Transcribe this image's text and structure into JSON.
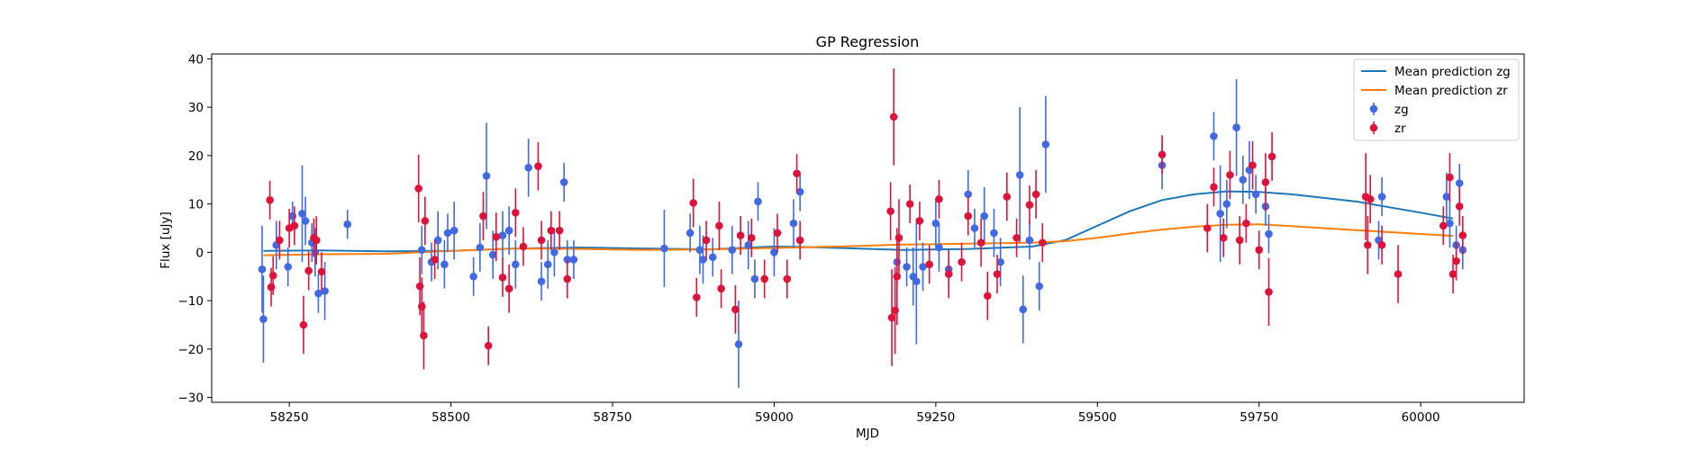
{
  "chart_data": {
    "type": "scatter",
    "title": "GP Regression",
    "xlabel": "MJD",
    "ylabel": "Flux [uJy]",
    "xlim": [
      58130,
      60160
    ],
    "ylim": [
      -31,
      41
    ],
    "xticks": [
      58250,
      58500,
      58750,
      59000,
      59250,
      59500,
      59750,
      60000
    ],
    "yticks": [
      -30,
      -20,
      -10,
      0,
      10,
      20,
      30,
      40
    ],
    "grid": false,
    "legend_position": "top-right",
    "lines": [
      {
        "name": "Mean prediction zg",
        "color": "#1f77b4",
        "x": [
          58210,
          58300,
          58400,
          58500,
          58600,
          58700,
          58800,
          58900,
          59000,
          59050,
          59100,
          59200,
          59300,
          59400,
          59450,
          59500,
          59550,
          59600,
          59650,
          59700,
          59750,
          59800,
          59900,
          60000,
          60050
        ],
        "y": [
          0.3,
          0.4,
          0.2,
          0.3,
          0.8,
          1.0,
          0.8,
          0.6,
          1.2,
          1.1,
          0.9,
          0.5,
          0.7,
          1.2,
          2.5,
          5.5,
          8.5,
          10.8,
          12.0,
          12.6,
          12.5,
          12.0,
          10.5,
          8.2,
          7.0
        ]
      },
      {
        "name": "Mean prediction zr",
        "color": "#ff7f0e",
        "x": [
          58210,
          58300,
          58400,
          58500,
          58600,
          58700,
          58800,
          58900,
          59000,
          59100,
          59200,
          59300,
          59400,
          59450,
          59500,
          59550,
          59600,
          59650,
          59700,
          59750,
          59800,
          59900,
          60000,
          60050
        ],
        "y": [
          -0.6,
          -0.4,
          -0.3,
          0.3,
          0.8,
          0.7,
          0.5,
          0.6,
          0.9,
          1.2,
          1.6,
          1.8,
          2.0,
          2.3,
          3.0,
          3.9,
          4.7,
          5.3,
          5.7,
          5.8,
          5.4,
          4.6,
          3.8,
          3.4
        ]
      }
    ],
    "series": [
      {
        "name": "zg",
        "color": "#4169e1",
        "points": [
          {
            "x": 58208,
            "y": -3.5,
            "e": 9
          },
          {
            "x": 58210,
            "y": -13.8,
            "e": 9
          },
          {
            "x": 58230,
            "y": 1.5,
            "e": 5
          },
          {
            "x": 58248,
            "y": -3,
            "e": 4
          },
          {
            "x": 58255,
            "y": 7.5,
            "e": 3
          },
          {
            "x": 58270,
            "y": 8,
            "e": 10
          },
          {
            "x": 58275,
            "y": 6.5,
            "e": 5
          },
          {
            "x": 58285,
            "y": 2,
            "e": 4
          },
          {
            "x": 58290,
            "y": 0,
            "e": 5
          },
          {
            "x": 58295,
            "y": -8.5,
            "e": 4
          },
          {
            "x": 58305,
            "y": -8,
            "e": 6
          },
          {
            "x": 58340,
            "y": 5.8,
            "e": 3
          },
          {
            "x": 58455,
            "y": 0.5,
            "e": 5
          },
          {
            "x": 58470,
            "y": -2,
            "e": 4
          },
          {
            "x": 58480,
            "y": 2.5,
            "e": 6
          },
          {
            "x": 58490,
            "y": -2.5,
            "e": 5
          },
          {
            "x": 58495,
            "y": 4,
            "e": 4
          },
          {
            "x": 58505,
            "y": 4.5,
            "e": 6
          },
          {
            "x": 58535,
            "y": -5,
            "e": 4
          },
          {
            "x": 58545,
            "y": 1,
            "e": 5
          },
          {
            "x": 58555,
            "y": 15.8,
            "e": 11
          },
          {
            "x": 58565,
            "y": -0.5,
            "e": 5
          },
          {
            "x": 58580,
            "y": 3.5,
            "e": 5
          },
          {
            "x": 58590,
            "y": 4.5,
            "e": 5
          },
          {
            "x": 58600,
            "y": -2.5,
            "e": 5
          },
          {
            "x": 58620,
            "y": 17.5,
            "e": 6
          },
          {
            "x": 58640,
            "y": -6,
            "e": 4
          },
          {
            "x": 58650,
            "y": -2.5,
            "e": 5
          },
          {
            "x": 58660,
            "y": 0,
            "e": 5
          },
          {
            "x": 58675,
            "y": 14.5,
            "e": 4
          },
          {
            "x": 58680,
            "y": -1.5,
            "e": 4
          },
          {
            "x": 58690,
            "y": -1.5,
            "e": 4
          },
          {
            "x": 58830,
            "y": 0.8,
            "e": 8
          },
          {
            "x": 58870,
            "y": 4,
            "e": 4
          },
          {
            "x": 58885,
            "y": 0.5,
            "e": 5
          },
          {
            "x": 58890,
            "y": -1.5,
            "e": 5
          },
          {
            "x": 58905,
            "y": -1,
            "e": 4
          },
          {
            "x": 58935,
            "y": 0.5,
            "e": 5
          },
          {
            "x": 58945,
            "y": -19,
            "e": 9
          },
          {
            "x": 58960,
            "y": 1.5,
            "e": 5
          },
          {
            "x": 58970,
            "y": -5.5,
            "e": 4
          },
          {
            "x": 58975,
            "y": 10.5,
            "e": 4
          },
          {
            "x": 59000,
            "y": 0,
            "e": 5
          },
          {
            "x": 59030,
            "y": 6,
            "e": 5
          },
          {
            "x": 59040,
            "y": 12.5,
            "e": 4
          },
          {
            "x": 59190,
            "y": -2,
            "e": 5
          },
          {
            "x": 59205,
            "y": -3,
            "e": 4
          },
          {
            "x": 59215,
            "y": -5,
            "e": 6
          },
          {
            "x": 59220,
            "y": -6,
            "e": 13
          },
          {
            "x": 59230,
            "y": -3,
            "e": 5
          },
          {
            "x": 59250,
            "y": 6,
            "e": 5
          },
          {
            "x": 59255,
            "y": 1,
            "e": 5
          },
          {
            "x": 59270,
            "y": -3.5,
            "e": 4
          },
          {
            "x": 59300,
            "y": 12,
            "e": 5
          },
          {
            "x": 59310,
            "y": 5,
            "e": 4
          },
          {
            "x": 59325,
            "y": 7.5,
            "e": 6
          },
          {
            "x": 59340,
            "y": 4,
            "e": 5
          },
          {
            "x": 59350,
            "y": -2,
            "e": 5
          },
          {
            "x": 59380,
            "y": 16,
            "e": 14
          },
          {
            "x": 59385,
            "y": -11.8,
            "e": 7
          },
          {
            "x": 59395,
            "y": 2.5,
            "e": 4
          },
          {
            "x": 59410,
            "y": -7,
            "e": 5
          },
          {
            "x": 59420,
            "y": 22.3,
            "e": 10
          },
          {
            "x": 59600,
            "y": 18,
            "e": 5
          },
          {
            "x": 59680,
            "y": 24,
            "e": 5
          },
          {
            "x": 59690,
            "y": 8,
            "e": 10
          },
          {
            "x": 59700,
            "y": 10,
            "e": 5
          },
          {
            "x": 59715,
            "y": 25.8,
            "e": 10
          },
          {
            "x": 59725,
            "y": 15,
            "e": 5
          },
          {
            "x": 59735,
            "y": 17,
            "e": 6
          },
          {
            "x": 59745,
            "y": 12,
            "e": 4
          },
          {
            "x": 59760,
            "y": 9.5,
            "e": 4
          },
          {
            "x": 59765,
            "y": 3.8,
            "e": 4
          },
          {
            "x": 59935,
            "y": 2.5,
            "e": 4
          },
          {
            "x": 59940,
            "y": 11.5,
            "e": 4
          },
          {
            "x": 60040,
            "y": 11.5,
            "e": 5
          },
          {
            "x": 60045,
            "y": 6,
            "e": 5
          },
          {
            "x": 60055,
            "y": 1.5,
            "e": 4
          },
          {
            "x": 60060,
            "y": 14.3,
            "e": 4
          },
          {
            "x": 60065,
            "y": 0.5,
            "e": 4
          }
        ]
      },
      {
        "name": "zr",
        "color": "#dc143c",
        "points": [
          {
            "x": 58220,
            "y": 10.8,
            "e": 4
          },
          {
            "x": 58222,
            "y": -7.2,
            "e": 4
          },
          {
            "x": 58225,
            "y": -4.8,
            "e": 4
          },
          {
            "x": 58235,
            "y": 2.5,
            "e": 4
          },
          {
            "x": 58250,
            "y": 5,
            "e": 4
          },
          {
            "x": 58258,
            "y": 5.5,
            "e": 4
          },
          {
            "x": 58272,
            "y": -15,
            "e": 6
          },
          {
            "x": 58280,
            "y": -3.8,
            "e": 4
          },
          {
            "x": 58288,
            "y": 3,
            "e": 4
          },
          {
            "x": 58292,
            "y": 2.5,
            "e": 5
          },
          {
            "x": 58300,
            "y": -4,
            "e": 4
          },
          {
            "x": 58450,
            "y": 13.2,
            "e": 7
          },
          {
            "x": 58452,
            "y": -7,
            "e": 6
          },
          {
            "x": 58455,
            "y": -11.2,
            "e": 6
          },
          {
            "x": 58458,
            "y": -17.2,
            "e": 7
          },
          {
            "x": 58460,
            "y": 6.5,
            "e": 5
          },
          {
            "x": 58475,
            "y": -1.5,
            "e": 4
          },
          {
            "x": 58550,
            "y": 7.5,
            "e": 5
          },
          {
            "x": 58558,
            "y": -19.3,
            "e": 4
          },
          {
            "x": 58570,
            "y": 3.2,
            "e": 5
          },
          {
            "x": 58580,
            "y": -5.2,
            "e": 4
          },
          {
            "x": 58590,
            "y": -7.5,
            "e": 5
          },
          {
            "x": 58600,
            "y": 8.2,
            "e": 5
          },
          {
            "x": 58612,
            "y": 1.2,
            "e": 4
          },
          {
            "x": 58635,
            "y": 17.8,
            "e": 5
          },
          {
            "x": 58640,
            "y": 2.5,
            "e": 4
          },
          {
            "x": 58655,
            "y": 4.5,
            "e": 4
          },
          {
            "x": 58668,
            "y": 4.5,
            "e": 4
          },
          {
            "x": 58680,
            "y": -5.5,
            "e": 4
          },
          {
            "x": 58875,
            "y": 10.2,
            "e": 5
          },
          {
            "x": 58880,
            "y": -9.3,
            "e": 4
          },
          {
            "x": 58895,
            "y": 2.5,
            "e": 4
          },
          {
            "x": 58915,
            "y": 5.5,
            "e": 5
          },
          {
            "x": 58918,
            "y": -7.5,
            "e": 4
          },
          {
            "x": 58940,
            "y": -11.8,
            "e": 5
          },
          {
            "x": 58948,
            "y": 3.5,
            "e": 4
          },
          {
            "x": 58965,
            "y": 3,
            "e": 4
          },
          {
            "x": 58985,
            "y": -5.5,
            "e": 4
          },
          {
            "x": 59005,
            "y": 4,
            "e": 4
          },
          {
            "x": 59020,
            "y": -5.5,
            "e": 4
          },
          {
            "x": 59035,
            "y": 16.3,
            "e": 4
          },
          {
            "x": 59040,
            "y": 2.5,
            "e": 4
          },
          {
            "x": 59180,
            "y": 8.5,
            "e": 6
          },
          {
            "x": 59182,
            "y": -13.5,
            "e": 10
          },
          {
            "x": 59185,
            "y": 28,
            "e": 10
          },
          {
            "x": 59187,
            "y": -12,
            "e": 9
          },
          {
            "x": 59190,
            "y": -5,
            "e": 10
          },
          {
            "x": 59193,
            "y": 3,
            "e": 8
          },
          {
            "x": 59210,
            "y": 10,
            "e": 4
          },
          {
            "x": 59225,
            "y": 6.5,
            "e": 4
          },
          {
            "x": 59240,
            "y": -2.5,
            "e": 4
          },
          {
            "x": 59255,
            "y": 11,
            "e": 4
          },
          {
            "x": 59270,
            "y": -4.5,
            "e": 5
          },
          {
            "x": 59290,
            "y": -2,
            "e": 4
          },
          {
            "x": 59300,
            "y": 7.5,
            "e": 4
          },
          {
            "x": 59320,
            "y": 2,
            "e": 5
          },
          {
            "x": 59330,
            "y": -9,
            "e": 5
          },
          {
            "x": 59345,
            "y": -4.5,
            "e": 4
          },
          {
            "x": 59360,
            "y": 11.5,
            "e": 5
          },
          {
            "x": 59375,
            "y": 3,
            "e": 4
          },
          {
            "x": 59395,
            "y": 9.8,
            "e": 4
          },
          {
            "x": 59405,
            "y": 12,
            "e": 5
          },
          {
            "x": 59415,
            "y": 2,
            "e": 4
          },
          {
            "x": 59600,
            "y": 20.2,
            "e": 4
          },
          {
            "x": 59670,
            "y": 5,
            "e": 5
          },
          {
            "x": 59680,
            "y": 13.5,
            "e": 4
          },
          {
            "x": 59695,
            "y": 3,
            "e": 4
          },
          {
            "x": 59705,
            "y": 16,
            "e": 5
          },
          {
            "x": 59720,
            "y": 2.5,
            "e": 5
          },
          {
            "x": 59730,
            "y": 6,
            "e": 4
          },
          {
            "x": 59740,
            "y": 18,
            "e": 5
          },
          {
            "x": 59750,
            "y": 0.5,
            "e": 4
          },
          {
            "x": 59760,
            "y": 14.5,
            "e": 6
          },
          {
            "x": 59765,
            "y": -8.2,
            "e": 7
          },
          {
            "x": 59770,
            "y": 19.8,
            "e": 5
          },
          {
            "x": 59915,
            "y": 11.5,
            "e": 9
          },
          {
            "x": 59918,
            "y": 1.5,
            "e": 6
          },
          {
            "x": 59922,
            "y": 11,
            "e": 5
          },
          {
            "x": 59940,
            "y": 1.5,
            "e": 4
          },
          {
            "x": 59965,
            "y": -4.5,
            "e": 6
          },
          {
            "x": 60035,
            "y": 5.5,
            "e": 4
          },
          {
            "x": 60045,
            "y": 15.5,
            "e": 5
          },
          {
            "x": 60050,
            "y": -4.5,
            "e": 4
          },
          {
            "x": 60055,
            "y": -1.8,
            "e": 4
          },
          {
            "x": 60060,
            "y": 9.5,
            "e": 4
          },
          {
            "x": 60065,
            "y": 3.5,
            "e": 4
          }
        ]
      }
    ],
    "legend": [
      "Mean prediction zg",
      "Mean prediction zr",
      "zg",
      "zr"
    ]
  }
}
